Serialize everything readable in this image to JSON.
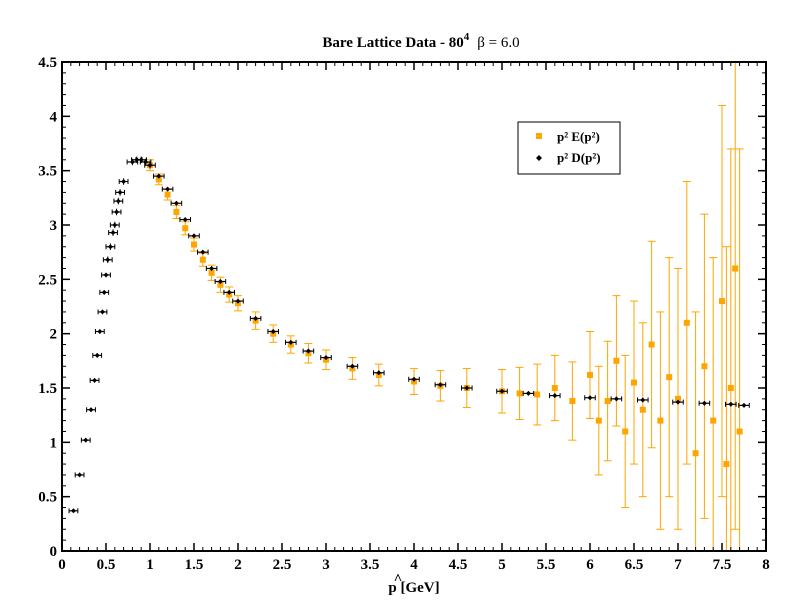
{
  "chart_data": {
    "type": "scatter",
    "title": {
      "main": "Bare Lattice Data - 80",
      "superscript": "4",
      "beta_label": "β = 6.0"
    },
    "xlabel": {
      "hat": "^",
      "symbol": "p",
      "unit": " [GeV]"
    },
    "ylabel": "",
    "xlim": [
      0,
      8
    ],
    "ylim": [
      0,
      4.5
    ],
    "x_ticks": [
      "0",
      "0.5",
      "1",
      "1.5",
      "2",
      "2.5",
      "3",
      "3.5",
      "4",
      "4.5",
      "5",
      "5.5",
      "6",
      "6.5",
      "7",
      "7.5",
      "8"
    ],
    "y_ticks": [
      "0",
      "0.5",
      "1",
      "1.5",
      "2",
      "2.5",
      "3",
      "3.5",
      "4",
      "4.5"
    ],
    "x_tick_values": [
      0,
      0.5,
      1,
      1.5,
      2,
      2.5,
      3,
      3.5,
      4,
      4.5,
      5,
      5.5,
      6,
      6.5,
      7,
      7.5,
      8
    ],
    "y_tick_values": [
      0,
      0.5,
      1,
      1.5,
      2,
      2.5,
      3,
      3.5,
      4,
      4.5
    ],
    "grid": false,
    "legend_position": "top-right",
    "series": [
      {
        "key": "E",
        "name": "p² E(p²)",
        "color": "#ffa500",
        "marker": "square",
        "description_of_trend": "starts at x=1.0 (y~3.55), falls to ~1.45 at x=5, flattens near 1.35; error bars grow with x, spanning roughly 0 to 4.5 near x=7.5",
        "x": [
          1.0,
          1.1,
          1.2,
          1.3,
          1.4,
          1.5,
          1.6,
          1.7,
          1.8,
          1.9,
          2.0,
          2.2,
          2.4,
          2.6,
          2.8,
          3.0,
          3.3,
          3.6,
          4.0,
          4.3,
          4.6,
          5.0,
          5.2,
          5.4,
          5.6,
          5.8,
          6.0,
          6.1,
          6.2,
          6.3,
          6.4,
          6.5,
          6.6,
          6.7,
          6.8,
          6.9,
          7.0,
          7.1,
          7.2,
          7.3,
          7.4,
          7.5,
          7.55,
          7.6,
          7.65,
          7.7
        ],
        "y": [
          3.55,
          3.42,
          3.28,
          3.12,
          2.97,
          2.82,
          2.68,
          2.56,
          2.45,
          2.36,
          2.28,
          2.12,
          2.0,
          1.9,
          1.82,
          1.76,
          1.68,
          1.62,
          1.56,
          1.52,
          1.5,
          1.47,
          1.45,
          1.44,
          1.5,
          1.38,
          1.62,
          1.2,
          1.38,
          1.75,
          1.1,
          1.55,
          1.3,
          1.9,
          1.2,
          1.6,
          1.4,
          2.1,
          0.9,
          1.7,
          1.2,
          2.3,
          0.8,
          1.5,
          2.6,
          1.1
        ],
        "yerr": [
          0.05,
          0.05,
          0.05,
          0.06,
          0.06,
          0.06,
          0.06,
          0.07,
          0.07,
          0.07,
          0.07,
          0.08,
          0.08,
          0.08,
          0.09,
          0.09,
          0.1,
          0.1,
          0.12,
          0.14,
          0.18,
          0.2,
          0.24,
          0.28,
          0.3,
          0.36,
          0.4,
          0.5,
          0.55,
          0.6,
          0.7,
          0.75,
          0.8,
          0.95,
          1.0,
          1.1,
          1.2,
          1.3,
          1.3,
          1.4,
          1.5,
          1.8,
          2.0,
          2.2,
          2.4,
          2.6
        ]
      },
      {
        "key": "D",
        "name": "p² D(p²)",
        "color": "#000000",
        "marker": "diamond",
        "x": [
          0.13,
          0.2,
          0.27,
          0.33,
          0.37,
          0.4,
          0.43,
          0.46,
          0.48,
          0.5,
          0.52,
          0.55,
          0.58,
          0.6,
          0.62,
          0.64,
          0.66,
          0.7,
          0.8,
          0.85,
          0.9,
          0.95,
          1.0,
          1.1,
          1.2,
          1.3,
          1.4,
          1.5,
          1.6,
          1.7,
          1.8,
          1.9,
          2.0,
          2.2,
          2.4,
          2.6,
          2.8,
          3.0,
          3.3,
          3.6,
          4.0,
          4.3,
          4.6,
          5.0,
          5.3,
          5.6,
          6.0,
          6.3,
          6.6,
          7.0,
          7.3,
          7.6,
          7.75
        ],
        "y": [
          0.37,
          0.7,
          1.02,
          1.3,
          1.57,
          1.8,
          2.02,
          2.2,
          2.38,
          2.54,
          2.68,
          2.8,
          2.93,
          3.0,
          3.12,
          3.22,
          3.3,
          3.4,
          3.58,
          3.6,
          3.6,
          3.58,
          3.55,
          3.45,
          3.33,
          3.2,
          3.05,
          2.9,
          2.75,
          2.6,
          2.48,
          2.38,
          2.3,
          2.14,
          2.02,
          1.92,
          1.84,
          1.78,
          1.7,
          1.64,
          1.58,
          1.53,
          1.5,
          1.47,
          1.45,
          1.43,
          1.41,
          1.4,
          1.39,
          1.37,
          1.36,
          1.35,
          1.34
        ],
        "xerr": [
          0.05,
          0.05,
          0.05,
          0.05,
          0.05,
          0.05,
          0.05,
          0.05,
          0.05,
          0.05,
          0.05,
          0.05,
          0.05,
          0.05,
          0.05,
          0.05,
          0.05,
          0.05,
          0.06,
          0.06,
          0.06,
          0.06,
          0.06,
          0.06,
          0.06,
          0.06,
          0.06,
          0.06,
          0.06,
          0.06,
          0.06,
          0.06,
          0.06,
          0.06,
          0.06,
          0.06,
          0.06,
          0.06,
          0.06,
          0.06,
          0.06,
          0.06,
          0.06,
          0.06,
          0.06,
          0.06,
          0.06,
          0.06,
          0.06,
          0.06,
          0.06,
          0.06,
          0.06
        ],
        "yerr": [
          0.01,
          0.01,
          0.02,
          0.02,
          0.02,
          0.02,
          0.02,
          0.02,
          0.02,
          0.02,
          0.03,
          0.03,
          0.03,
          0.03,
          0.03,
          0.03,
          0.03,
          0.03,
          0.03,
          0.03,
          0.03,
          0.03,
          0.03,
          0.02,
          0.02,
          0.02,
          0.02,
          0.02,
          0.02,
          0.02,
          0.02,
          0.02,
          0.02,
          0.02,
          0.02,
          0.02,
          0.02,
          0.02,
          0.02,
          0.02,
          0.02,
          0.02,
          0.02,
          0.02,
          0.02,
          0.02,
          0.02,
          0.02,
          0.02,
          0.02,
          0.02,
          0.02,
          0.02
        ]
      }
    ]
  }
}
